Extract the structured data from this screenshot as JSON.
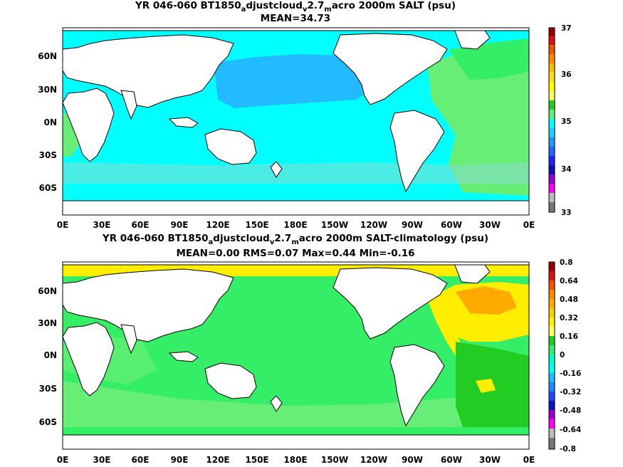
{
  "panel1": {
    "title_prefix": "YR 046-060 BT1850",
    "title_sub1": "a",
    "title_mid": "djustcloud",
    "title_sub2": "v",
    "title_mid2": "2.7",
    "title_sub3": "m",
    "title_suffix": "acro 2000m SALT (psu)",
    "stats": "MEAN=34.73",
    "colorbar_labels": [
      "37",
      "36",
      "35",
      "34",
      "33"
    ]
  },
  "panel2": {
    "title_prefix": "YR 046-060 BT1850",
    "title_sub1": "a",
    "title_mid": "djustcloud",
    "title_sub2": "v",
    "title_mid2": "2.7",
    "title_sub3": "m",
    "title_suffix": "acro 2000m SALT-climatology (psu)",
    "stats": "MEAN=0.00   RMS=0.07   Max=0.44   Min=-0.16",
    "colorbar_labels": [
      "0.8",
      "0.64",
      "0.48",
      "0.32",
      "0.16",
      "0",
      "-0.16",
      "-0.32",
      "-0.48",
      "-0.64",
      "-0.8"
    ]
  },
  "lat_labels": [
    "60N",
    "30N",
    "0N",
    "30S",
    "60S"
  ],
  "lon_labels": [
    "0E",
    "30E",
    "60E",
    "90E",
    "120E",
    "150E",
    "180E",
    "150W",
    "120W",
    "90W",
    "60W",
    "30W",
    "0E"
  ],
  "colors": {
    "land": "#ffffff",
    "ocean_cyan": "#00ffff",
    "ocean_skyblue": "#22bbff",
    "ocean_green": "#33ee66",
    "ocean_lightgreen": "#66ee77",
    "ocean_darkgreen": "#22cc22",
    "ocean_yellow": "#ffee00",
    "ocean_orange": "#ffaa00"
  }
}
